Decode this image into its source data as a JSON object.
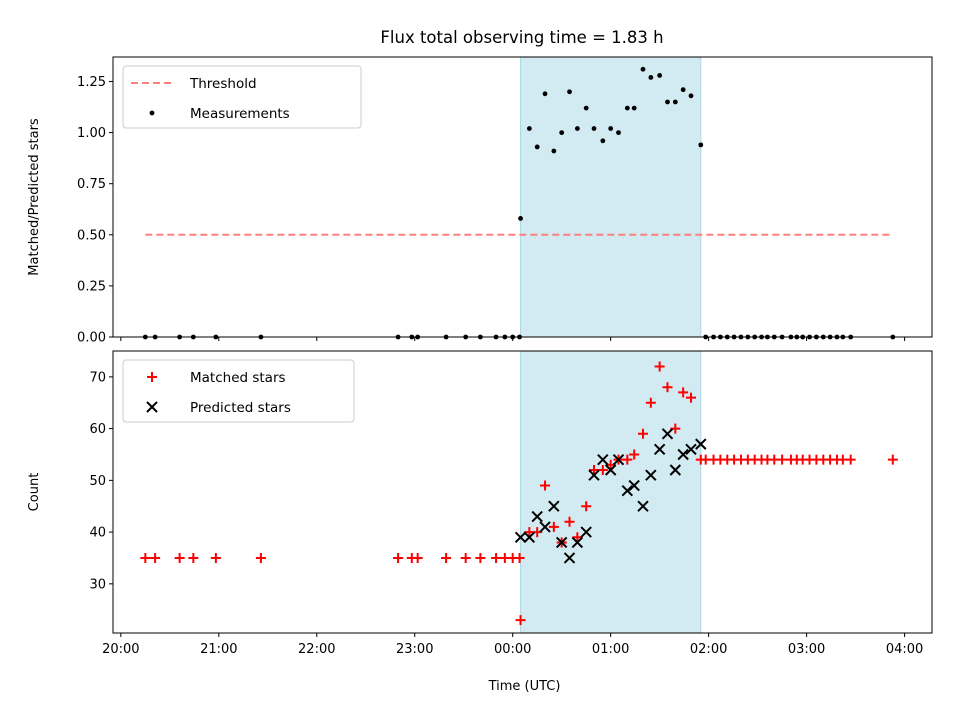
{
  "title": "Flux total observing time = 1.83 h",
  "colors": {
    "threshold": "#ff7f7f",
    "measurement": "#000000",
    "matched": "#ff0000",
    "predicted": "#000000",
    "span": "#add8e6"
  },
  "chart_data": [
    {
      "type": "scatter",
      "ylabel": "Matched/Predicted stars",
      "xlim": [
        -0.08,
        8.28
      ],
      "ylim": [
        0,
        1.37
      ],
      "yticks": [
        0.0,
        0.25,
        0.5,
        0.75,
        1.0,
        1.25
      ],
      "ytick_labels": [
        "0.00",
        "0.25",
        "0.50",
        "0.75",
        "1.00",
        "1.25"
      ],
      "observing_span": [
        4.08,
        5.92
      ],
      "legend": {
        "position": "upper-left",
        "entries": [
          "Threshold",
          "Measurements"
        ]
      },
      "threshold": {
        "name": "Threshold",
        "style": "dashed",
        "x": [
          0.25,
          7.87
        ],
        "y": 0.5
      },
      "series": [
        {
          "name": "Measurements",
          "marker": "dot",
          "x": [
            0.25,
            0.35,
            0.6,
            0.74,
            0.97,
            1.43,
            2.83,
            2.97,
            3.03,
            3.32,
            3.52,
            3.67,
            3.83,
            3.92,
            4.0,
            4.07,
            4.08,
            4.17,
            4.25,
            4.33,
            4.42,
            4.5,
            4.58,
            4.66,
            4.75,
            4.83,
            4.92,
            5.0,
            5.08,
            5.17,
            5.24,
            5.33,
            5.41,
            5.5,
            5.58,
            5.66,
            5.74,
            5.82,
            5.92,
            5.97,
            6.05,
            6.12,
            6.19,
            6.26,
            6.33,
            6.4,
            6.47,
            6.54,
            6.6,
            6.67,
            6.75,
            6.84,
            6.9,
            6.96,
            7.03,
            7.1,
            7.17,
            7.24,
            7.31,
            7.37,
            7.45,
            7.88
          ],
          "y": [
            0,
            0,
            0,
            0,
            0,
            0,
            0,
            0,
            0,
            0,
            0,
            0,
            0,
            0,
            0,
            0,
            0.58,
            1.02,
            0.93,
            1.19,
            0.91,
            1.0,
            1.2,
            1.02,
            1.12,
            1.02,
            0.96,
            1.02,
            1.0,
            1.12,
            1.12,
            1.31,
            1.27,
            1.28,
            1.15,
            1.15,
            1.21,
            1.18,
            0.94,
            0,
            0,
            0,
            0,
            0,
            0,
            0,
            0,
            0,
            0,
            0,
            0,
            0,
            0,
            0,
            0,
            0,
            0,
            0,
            0,
            0,
            0,
            0
          ]
        }
      ]
    },
    {
      "type": "scatter",
      "xlabel": "Time (UTC)",
      "ylabel": "Count",
      "xlim": [
        -0.08,
        8.28
      ],
      "ylim": [
        20.5,
        75
      ],
      "yticks": [
        30,
        40,
        50,
        60,
        70
      ],
      "ytick_labels": [
        "30",
        "40",
        "50",
        "60",
        "70"
      ],
      "xticks": [
        0,
        1,
        2,
        3,
        4,
        5,
        6,
        7,
        8
      ],
      "xtick_labels": [
        "20:00",
        "21:00",
        "22:00",
        "23:00",
        "00:00",
        "01:00",
        "02:00",
        "03:00",
        "04:00"
      ],
      "observing_span": [
        4.08,
        5.92
      ],
      "legend": {
        "position": "upper-left",
        "entries": [
          "Matched stars",
          "Predicted stars"
        ]
      },
      "series": [
        {
          "name": "Matched stars",
          "marker": "plus",
          "x": [
            0.25,
            0.35,
            0.6,
            0.74,
            0.97,
            1.43,
            2.83,
            2.97,
            3.03,
            3.32,
            3.52,
            3.67,
            3.83,
            3.92,
            4.0,
            4.07,
            4.08,
            4.17,
            4.25,
            4.33,
            4.42,
            4.5,
            4.58,
            4.66,
            4.75,
            4.83,
            4.92,
            5.0,
            5.08,
            5.17,
            5.24,
            5.33,
            5.41,
            5.5,
            5.58,
            5.66,
            5.74,
            5.82,
            5.92,
            5.97,
            6.05,
            6.12,
            6.19,
            6.26,
            6.33,
            6.4,
            6.47,
            6.54,
            6.6,
            6.67,
            6.75,
            6.84,
            6.9,
            6.96,
            7.03,
            7.1,
            7.17,
            7.24,
            7.31,
            7.37,
            7.45,
            7.88
          ],
          "y": [
            35,
            35,
            35,
            35,
            35,
            35,
            35,
            35,
            35,
            35,
            35,
            35,
            35,
            35,
            35,
            35,
            23,
            40,
            40,
            49,
            41,
            38,
            42,
            39,
            45,
            52,
            52,
            53,
            54,
            54,
            55,
            59,
            65,
            72,
            68,
            60,
            67,
            66,
            54,
            54,
            54,
            54,
            54,
            54,
            54,
            54,
            54,
            54,
            54,
            54,
            54,
            54,
            54,
            54,
            54,
            54,
            54,
            54,
            54,
            54,
            54,
            54
          ]
        },
        {
          "name": "Predicted stars",
          "marker": "x",
          "x": [
            4.08,
            4.17,
            4.25,
            4.33,
            4.42,
            4.5,
            4.58,
            4.66,
            4.75,
            4.83,
            4.92,
            5.0,
            5.08,
            5.17,
            5.24,
            5.33,
            5.41,
            5.5,
            5.58,
            5.66,
            5.74,
            5.82,
            5.92
          ],
          "y": [
            39,
            39,
            43,
            41,
            45,
            38,
            35,
            38,
            40,
            51,
            54,
            52,
            54,
            48,
            49,
            45,
            51,
            56,
            59,
            52,
            55,
            56,
            57
          ]
        }
      ]
    }
  ]
}
